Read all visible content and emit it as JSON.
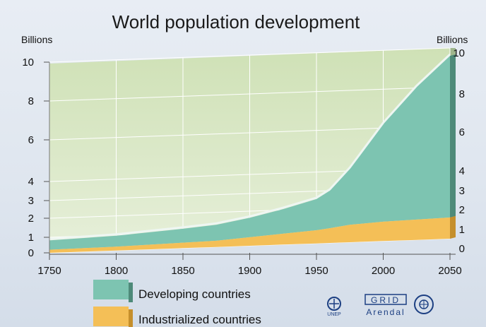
{
  "chart_data": {
    "type": "area",
    "stacked": true,
    "title": "World population development",
    "ylabel_left": "Billions",
    "ylabel_right": "Billions",
    "x_ticks": [
      1750,
      1800,
      1850,
      1900,
      1950,
      2000,
      2050
    ],
    "y_ticks_left": [
      0,
      1,
      2,
      3,
      4,
      6,
      8,
      10
    ],
    "y_ticks_right": [
      0,
      1,
      2,
      3,
      4,
      6,
      8,
      10
    ],
    "ylim": [
      0,
      10
    ],
    "xlim": [
      1750,
      2050
    ],
    "legend_position": "bottom-left",
    "x": [
      1750,
      1800,
      1850,
      1875,
      1900,
      1925,
      1950,
      1960,
      1975,
      2000,
      2025,
      2050
    ],
    "series": [
      {
        "name": "Industrialized countries",
        "color": "#f4bf57",
        "values": [
          0.2,
          0.25,
          0.35,
          0.4,
          0.55,
          0.7,
          0.85,
          0.95,
          1.1,
          1.2,
          1.25,
          1.3
        ]
      },
      {
        "name": "Developing countries",
        "color": "#7dc4b1",
        "values": [
          0.6,
          0.7,
          0.85,
          0.95,
          1.1,
          1.35,
          1.7,
          2.05,
          3.0,
          5.0,
          6.8,
          8.3
        ]
      }
    ]
  },
  "logos": {
    "unep": "UNEP",
    "grid": "GRID",
    "arendal": "Arendal"
  },
  "colors": {
    "plot_background": "#d6e6c2",
    "developing": "#7dc4b1",
    "industrialized": "#f4bf57",
    "gridline": "#ffffff"
  }
}
